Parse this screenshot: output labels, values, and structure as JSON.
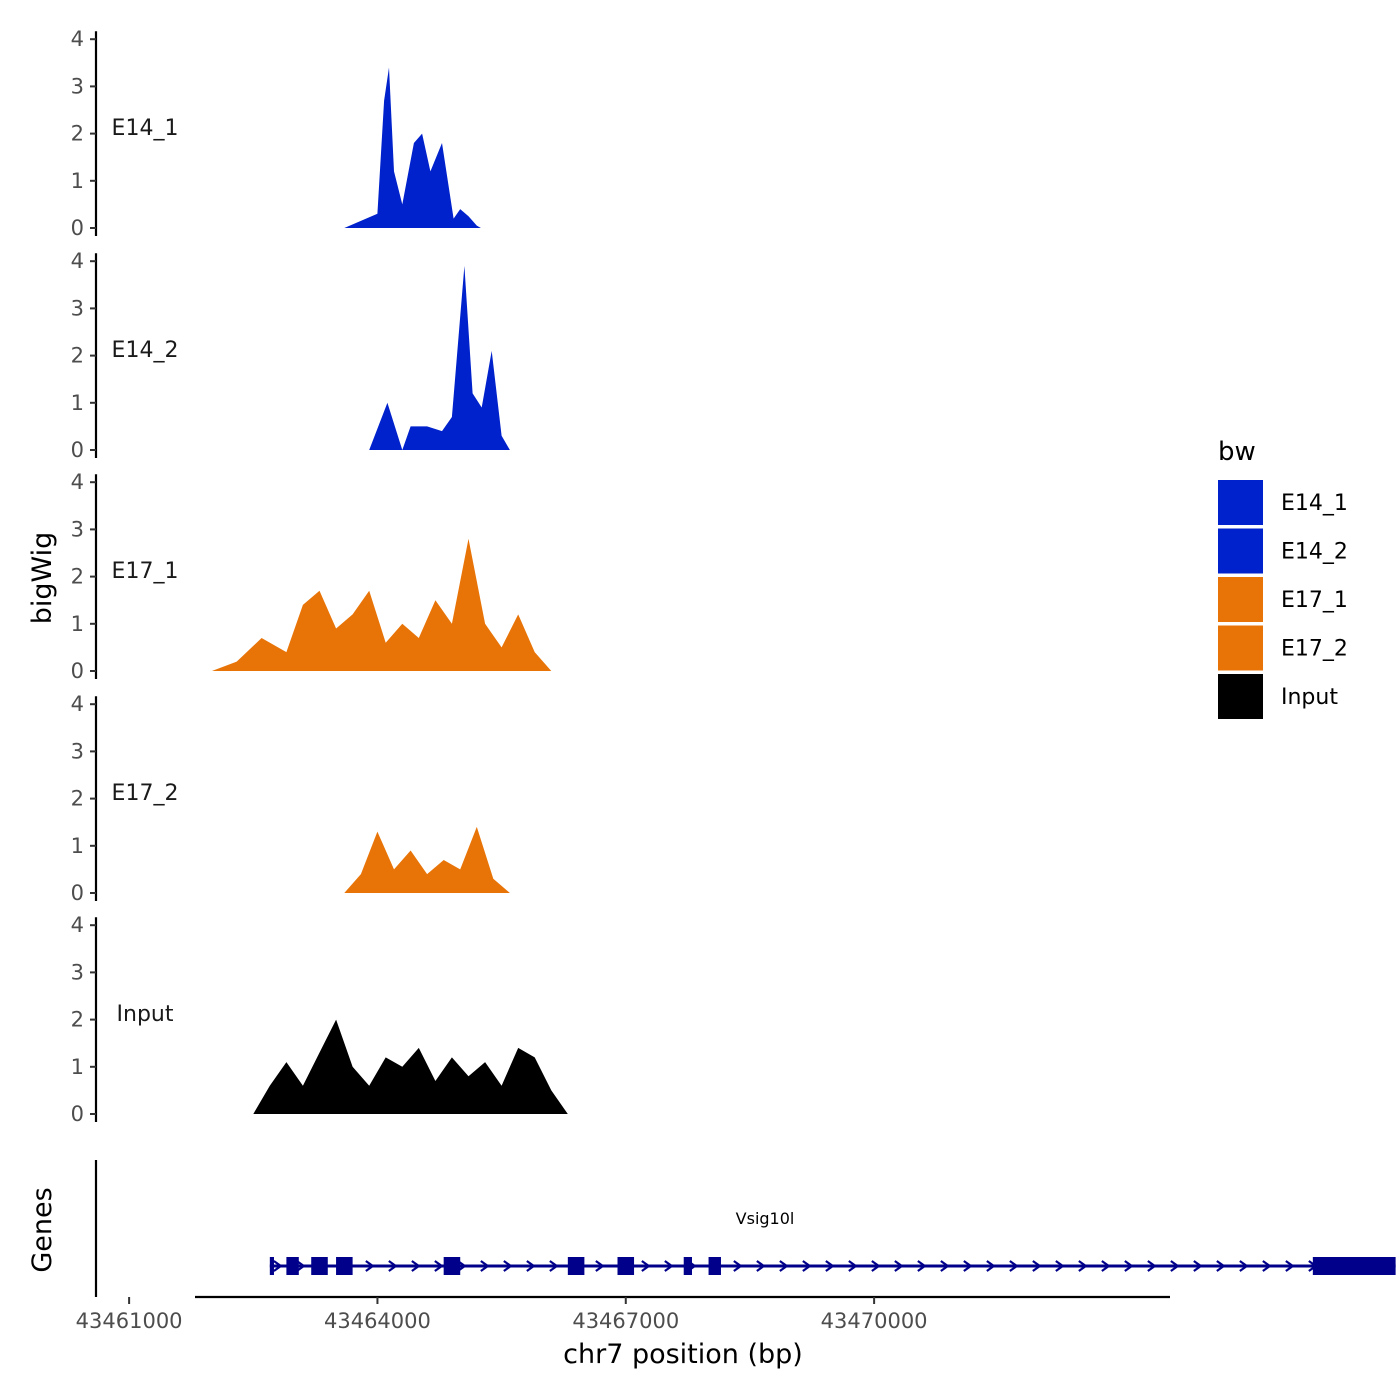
{
  "chart_data": {
    "type": "area",
    "title": "",
    "ylabel": "bigWig",
    "xlabel": "chr7 position (bp)",
    "xlim": [
      43460600,
      43476800
    ],
    "ylim": [
      0,
      4
    ],
    "yticks": [
      0,
      1,
      2,
      3,
      4
    ],
    "x_ticks": [
      {
        "value": 43461000,
        "label": "43461000"
      },
      {
        "value": 43464000,
        "label": "43464000"
      },
      {
        "value": 43467000,
        "label": "43467000"
      },
      {
        "value": 43470000,
        "label": "43470000"
      }
    ],
    "legend": {
      "title": "bw",
      "position": "right",
      "entries": [
        {
          "label": "E14_1",
          "color": "#0022CC"
        },
        {
          "label": "E14_2",
          "color": "#0022CC"
        },
        {
          "label": "E17_1",
          "color": "#E87408"
        },
        {
          "label": "E17_2",
          "color": "#E87408"
        },
        {
          "label": "Input",
          "color": "#000000"
        }
      ]
    },
    "series": [
      {
        "name": "E14_1",
        "color": "#0022CC",
        "points": [
          [
            43463600,
            0
          ],
          [
            43464000,
            0.3
          ],
          [
            43464080,
            2.7
          ],
          [
            43464140,
            3.4
          ],
          [
            43464200,
            1.2
          ],
          [
            43464300,
            0.5
          ],
          [
            43464440,
            1.8
          ],
          [
            43464540,
            2.0
          ],
          [
            43464640,
            1.2
          ],
          [
            43464780,
            1.8
          ],
          [
            43464920,
            0.2
          ],
          [
            43465000,
            0.4
          ],
          [
            43465100,
            0.25
          ],
          [
            43465200,
            0.05
          ],
          [
            43465250,
            0
          ]
        ]
      },
      {
        "name": "E14_2",
        "color": "#0022CC",
        "points": [
          [
            43463900,
            0
          ],
          [
            43464120,
            1.0
          ],
          [
            43464300,
            0
          ],
          [
            43464400,
            0.5
          ],
          [
            43464600,
            0.5
          ],
          [
            43464780,
            0.4
          ],
          [
            43464900,
            0.7
          ],
          [
            43465050,
            3.9
          ],
          [
            43465150,
            1.2
          ],
          [
            43465260,
            0.9
          ],
          [
            43465380,
            2.1
          ],
          [
            43465500,
            0.3
          ],
          [
            43465600,
            0
          ]
        ]
      },
      {
        "name": "E17_1",
        "color": "#E87408",
        "points": [
          [
            43462000,
            0
          ],
          [
            43462300,
            0.2
          ],
          [
            43462600,
            0.7
          ],
          [
            43462900,
            0.4
          ],
          [
            43463100,
            1.4
          ],
          [
            43463300,
            1.7
          ],
          [
            43463500,
            0.9
          ],
          [
            43463700,
            1.2
          ],
          [
            43463900,
            1.7
          ],
          [
            43464100,
            0.6
          ],
          [
            43464300,
            1.0
          ],
          [
            43464500,
            0.7
          ],
          [
            43464700,
            1.5
          ],
          [
            43464900,
            1.0
          ],
          [
            43465100,
            2.8
          ],
          [
            43465300,
            1.0
          ],
          [
            43465500,
            0.5
          ],
          [
            43465700,
            1.2
          ],
          [
            43465900,
            0.4
          ],
          [
            43466100,
            0
          ]
        ]
      },
      {
        "name": "E17_2",
        "color": "#E87408",
        "points": [
          [
            43463600,
            0
          ],
          [
            43463800,
            0.4
          ],
          [
            43464000,
            1.3
          ],
          [
            43464200,
            0.5
          ],
          [
            43464400,
            0.9
          ],
          [
            43464600,
            0.4
          ],
          [
            43464800,
            0.7
          ],
          [
            43465000,
            0.5
          ],
          [
            43465200,
            1.4
          ],
          [
            43465400,
            0.3
          ],
          [
            43465600,
            0
          ]
        ]
      },
      {
        "name": "Input",
        "color": "#000000",
        "points": [
          [
            43462500,
            0
          ],
          [
            43462700,
            0.6
          ],
          [
            43462900,
            1.1
          ],
          [
            43463100,
            0.6
          ],
          [
            43463300,
            1.3
          ],
          [
            43463500,
            2.0
          ],
          [
            43463700,
            1.0
          ],
          [
            43463900,
            0.6
          ],
          [
            43464100,
            1.2
          ],
          [
            43464300,
            1.0
          ],
          [
            43464500,
            1.4
          ],
          [
            43464700,
            0.7
          ],
          [
            43464900,
            1.2
          ],
          [
            43465100,
            0.8
          ],
          [
            43465300,
            1.1
          ],
          [
            43465500,
            0.6
          ],
          [
            43465700,
            1.4
          ],
          [
            43465900,
            1.2
          ],
          [
            43466100,
            0.5
          ],
          [
            43466300,
            0
          ]
        ]
      }
    ],
    "gene_track": {
      "label": "Genes",
      "gene": "Vsig10l",
      "start": 43462700,
      "end": 43476300,
      "strand": "+",
      "exons": [
        [
          43462700,
          43462750
        ],
        [
          43462900,
          43463050
        ],
        [
          43463200,
          43463400
        ],
        [
          43463500,
          43463700
        ],
        [
          43464800,
          43465000
        ],
        [
          43466300,
          43466500
        ],
        [
          43466900,
          43467100
        ],
        [
          43467700,
          43467800
        ],
        [
          43468000,
          43468150
        ],
        [
          43475300,
          43476300
        ]
      ]
    }
  }
}
